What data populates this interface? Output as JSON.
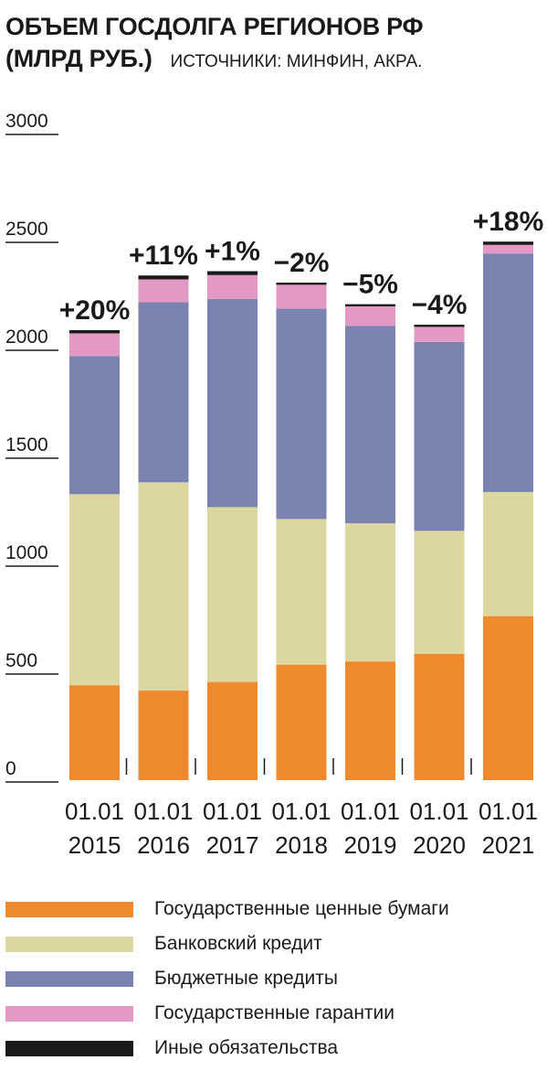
{
  "header": {
    "title_line1": "ОБЪЕМ ГОСДОЛГА РЕГИОНОВ РФ",
    "title_line2": "(МЛРД РУБ.)",
    "source": "ИСТОЧНИКИ: МИНФИН, АКРА."
  },
  "chart_data": {
    "type": "bar",
    "stacked": true,
    "categories": [
      "01.01\n2015",
      "01.01\n2016",
      "01.01\n2017",
      "01.01\n2018",
      "01.01\n2019",
      "01.01\n2020",
      "01.01\n2021"
    ],
    "changes": [
      "+20%",
      "+11%",
      "+1%",
      "−2%",
      "−5%",
      "−4%",
      "+18%"
    ],
    "series": [
      {
        "name": "Государственные ценные бумаги",
        "color": "#ee8a2e",
        "values": [
          440,
          415,
          455,
          535,
          550,
          585,
          760
        ]
      },
      {
        "name": "Банковский кредит",
        "color": "#dcd6a0",
        "values": [
          885,
          965,
          810,
          675,
          640,
          570,
          575
        ]
      },
      {
        "name": "Бюджетные кредиты",
        "color": "#7a82b0",
        "values": [
          640,
          835,
          965,
          975,
          915,
          875,
          1105
        ]
      },
      {
        "name": "Государственные гарантии",
        "color": "#e29ac4",
        "values": [
          105,
          105,
          110,
          110,
          90,
          70,
          40
        ]
      },
      {
        "name": "Иные обязательства",
        "color": "#1a1a1a",
        "values": [
          15,
          18,
          18,
          10,
          10,
          10,
          15
        ]
      }
    ],
    "yticks": [
      "3000",
      "2500",
      "2000",
      "1500",
      "1000",
      "500",
      "0"
    ],
    "ylim": [
      0,
      3000
    ],
    "grid": false,
    "legend_position": "bottom"
  }
}
